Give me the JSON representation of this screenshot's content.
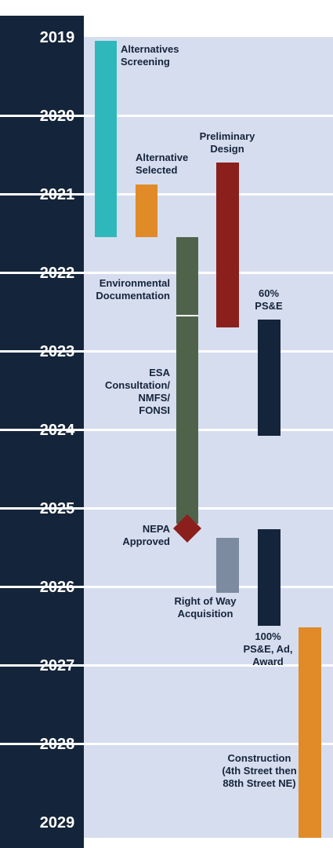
{
  "years": [
    "2019",
    "2020",
    "2021",
    "2022",
    "2023",
    "2024",
    "2025",
    "2026",
    "2027",
    "2028",
    "2029"
  ],
  "colors": {
    "year_band": "#14243a",
    "background": "#d6ddef",
    "gridline": "#ffffff",
    "year_text": "#ffffff",
    "label_text": "#14243a"
  },
  "phases": [
    {
      "id": "alternatives-screening",
      "label": [
        "Alternatives",
        "Screening"
      ],
      "start": 2019.05,
      "end": 2021.55,
      "color": "#2fb8bb",
      "type": "bar"
    },
    {
      "id": "alternative-selected",
      "label": [
        "Alternative",
        "Selected"
      ],
      "start": 2020.88,
      "end": 2021.55,
      "color": "#e08a28",
      "type": "bar"
    },
    {
      "id": "preliminary-design",
      "label": [
        "Preliminary",
        "Design"
      ],
      "start": 2020.6,
      "end": 2022.7,
      "color": "#8b1f1c",
      "type": "bar"
    },
    {
      "id": "environmental-documentation",
      "label": [
        "Environmental",
        "Documentation"
      ],
      "start": 2021.55,
      "end": 2022.55,
      "color": "#4f634b",
      "type": "bar"
    },
    {
      "id": "esa-consultation",
      "label": [
        "ESA",
        "Consultation/",
        "NMFS/",
        "FONSI"
      ],
      "start": 2022.55,
      "end": 2025.2,
      "color": "#4f634b",
      "type": "bar"
    },
    {
      "id": "sixty-pse",
      "label": [
        "60%",
        "PS&E"
      ],
      "start": 2022.6,
      "end": 2024.08,
      "color": "#14243a",
      "type": "bar"
    },
    {
      "id": "nepa-approved",
      "label": [
        "NEPA",
        "Approved"
      ],
      "date": 2025.38,
      "color": "#8b1f1c",
      "type": "milestone"
    },
    {
      "id": "right-of-way",
      "label": [
        "Right of Way",
        "Acquisition"
      ],
      "start": 2025.38,
      "end": 2026.08,
      "color": "#7c8ba0",
      "type": "bar"
    },
    {
      "id": "hundred-pse",
      "label": [
        "100%",
        "PS&E, Ad,",
        "Award"
      ],
      "start": 2025.27,
      "end": 2026.5,
      "color": "#14243a",
      "type": "bar"
    },
    {
      "id": "construction",
      "label": [
        "Construction",
        "(4th Street then",
        "88th Street NE)"
      ],
      "start": 2026.52,
      "end": 2029.2,
      "color": "#e08a28",
      "type": "bar"
    }
  ]
}
